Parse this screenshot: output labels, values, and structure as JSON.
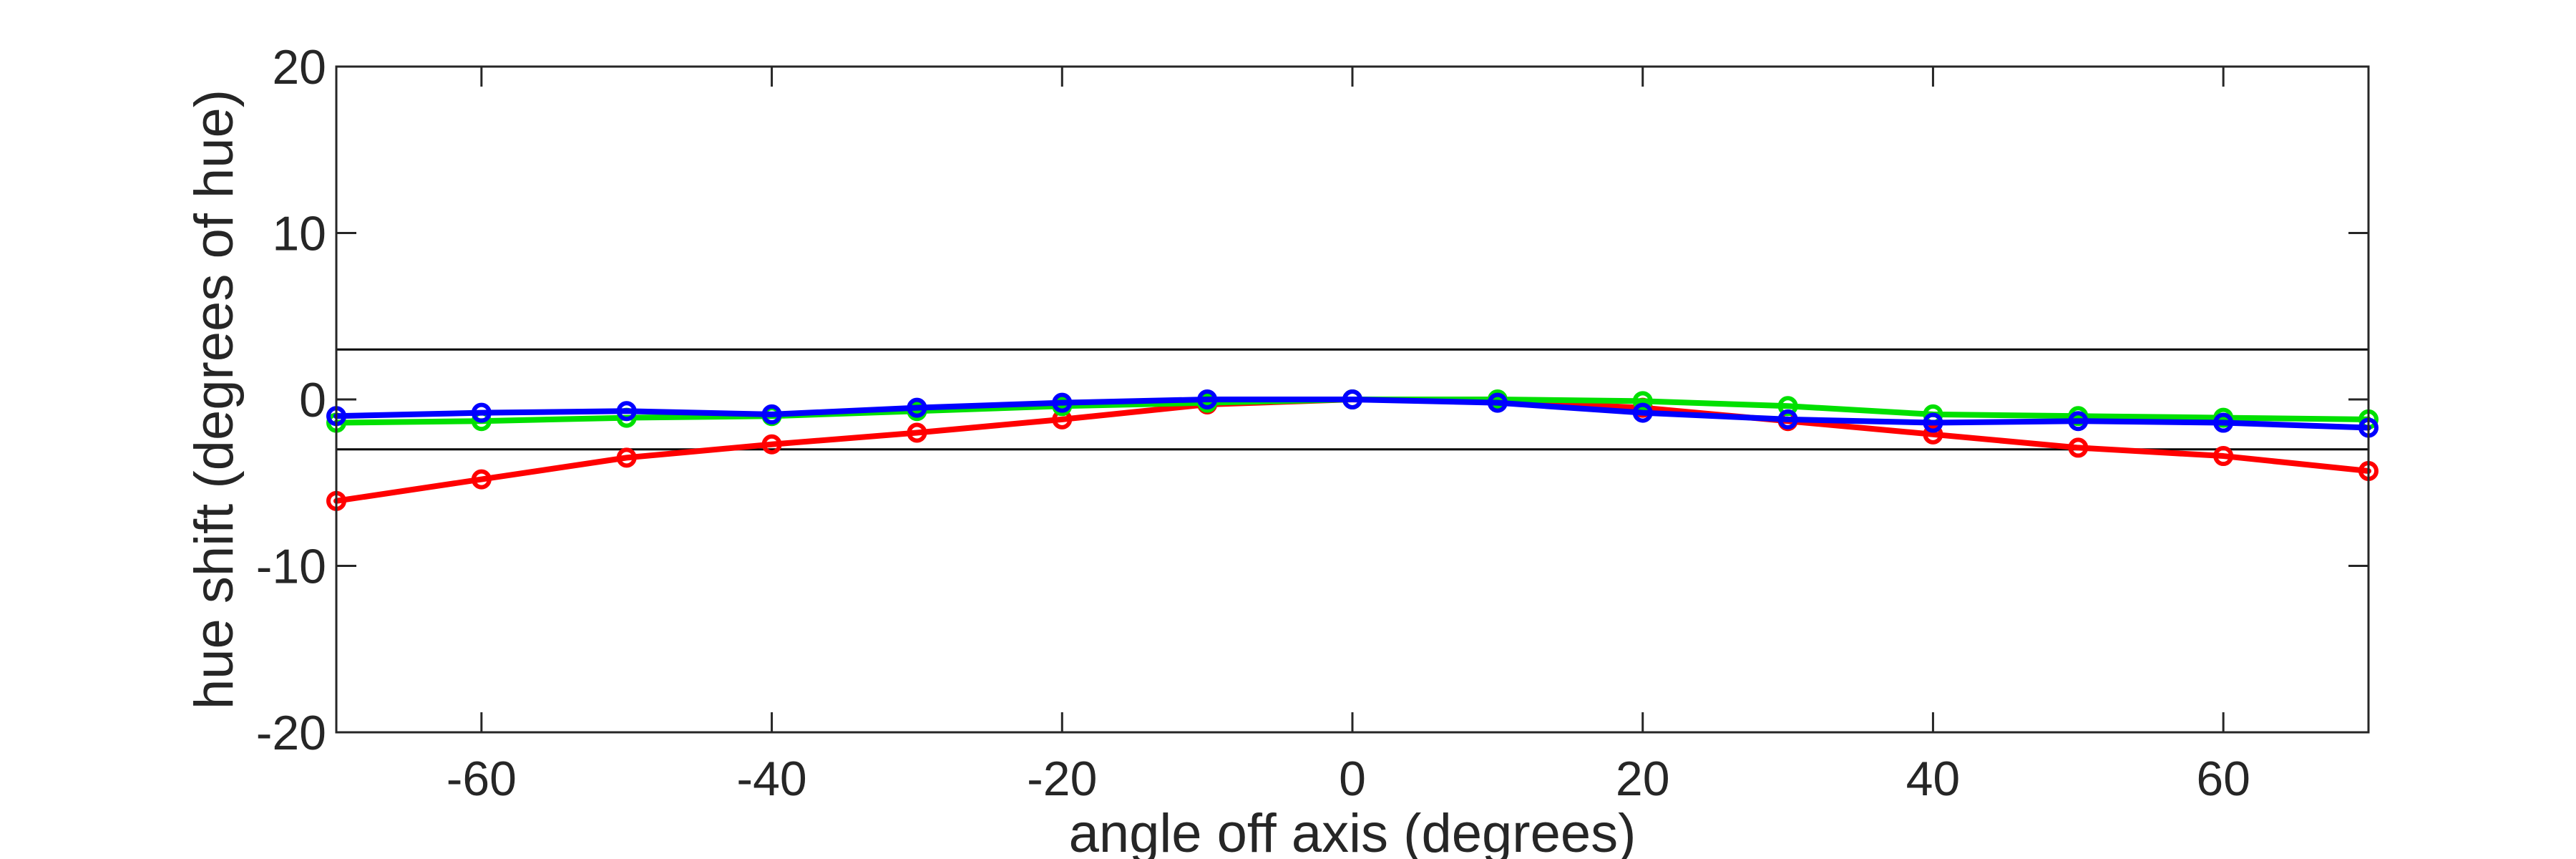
{
  "chart_data": {
    "type": "line",
    "title": "",
    "xlabel": "angle off axis (degrees)",
    "ylabel": "hue shift (degrees of hue)",
    "xlim": [
      -70,
      70
    ],
    "ylim": [
      -20,
      20
    ],
    "xticks": [
      -60,
      -40,
      -20,
      0,
      20,
      40,
      60
    ],
    "xtick_labels": [
      "-60",
      "-40",
      "-20",
      "0",
      "20",
      "40",
      "60"
    ],
    "yticks": [
      -20,
      -10,
      0,
      10,
      20
    ],
    "ytick_labels": [
      "-20",
      "-10",
      "0",
      "10",
      "20"
    ],
    "grid": false,
    "legend": "none",
    "reference_lines": [
      {
        "y": 3,
        "color": "#000000"
      },
      {
        "y": -3,
        "color": "#000000"
      }
    ],
    "x": [
      -70,
      -60,
      -50,
      -40,
      -30,
      -20,
      -10,
      0,
      10,
      20,
      30,
      40,
      50,
      60,
      70
    ],
    "series": [
      {
        "color": "#ff0000",
        "marker": "circle",
        "values": [
          -6.1,
          -4.8,
          -3.5,
          -2.7,
          -2.0,
          -1.2,
          -0.3,
          0.0,
          -0.1,
          -0.5,
          -1.3,
          -2.1,
          -2.9,
          -3.4,
          -4.3
        ]
      },
      {
        "color": "#00e000",
        "marker": "circle",
        "values": [
          -1.4,
          -1.3,
          -1.1,
          -1.0,
          -0.7,
          -0.4,
          -0.2,
          0.0,
          0.0,
          -0.1,
          -0.4,
          -0.9,
          -1.0,
          -1.1,
          -1.2
        ]
      },
      {
        "color": "#0000ff",
        "marker": "circle",
        "values": [
          -1.0,
          -0.8,
          -0.7,
          -0.9,
          -0.5,
          -0.2,
          0.0,
          0.0,
          -0.2,
          -0.8,
          -1.2,
          -1.4,
          -1.3,
          -1.4,
          -1.7
        ]
      }
    ]
  }
}
